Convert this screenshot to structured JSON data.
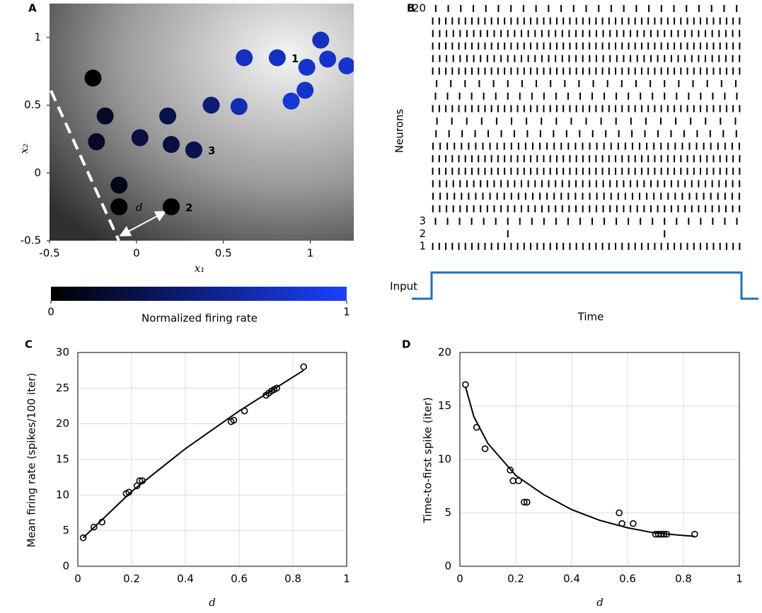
{
  "chart_data": [
    {
      "type": "scatter",
      "panel": "A",
      "xlabel": "x₁",
      "ylabel": "x₂",
      "xlim": [
        -0.5,
        1.25
      ],
      "ylim": [
        -0.5,
        1.25
      ],
      "xticks": [
        -0.5,
        0,
        0.5,
        1
      ],
      "yticks": [
        -0.5,
        0,
        0.5,
        1
      ],
      "grid": false,
      "series": [
        {
          "x": [
            -0.25,
            -0.18,
            -0.23,
            -0.1,
            -0.1,
            0.2,
            0.02,
            0.18,
            0.2,
            0.33,
            0.43,
            0.59,
            0.62,
            0.81,
            1.06,
            1.1,
            1.21,
            0.98,
            0.97,
            0.89
          ],
          "values": [
            0.7,
            0.42,
            0.23,
            -0.09,
            -0.25,
            -0.25,
            0.26,
            0.42,
            0.21,
            0.17,
            0.5,
            0.49,
            0.85,
            0.85,
            0.98,
            0.84,
            0.79,
            0.78,
            0.61,
            0.53
          ],
          "rates": [
            0,
            0.15,
            0.15,
            0.1,
            0,
            0,
            0.25,
            0.3,
            0.25,
            0.3,
            0.45,
            0.7,
            0.75,
            0.75,
            0.75,
            0.8,
            0.8,
            0.8,
            0.8,
            0.85
          ],
          "point_labels": [
            null,
            null,
            null,
            null,
            null,
            "2",
            null,
            null,
            null,
            "3",
            null,
            null,
            null,
            "1",
            null,
            null,
            null,
            null,
            null,
            null
          ]
        }
      ],
      "distance_label": "d",
      "colorbar": {
        "label": "Normalized firing rate",
        "ticks": [
          0,
          1
        ],
        "clim": [
          0,
          1
        ],
        "cmap": [
          "#000000",
          "#1a40ff"
        ]
      }
    },
    {
      "type": "raster",
      "panel": "B",
      "xlabel": "Time",
      "ylabel": "Neurons",
      "input_label": "Input",
      "categories": [
        "1",
        "2",
        "3",
        null,
        null,
        null,
        null,
        null,
        null,
        null,
        null,
        null,
        null,
        null,
        null,
        null,
        null,
        null,
        null,
        "20"
      ],
      "values": [
        48,
        2,
        26,
        46,
        44,
        46,
        48,
        48,
        44,
        24,
        21,
        48,
        26,
        22,
        48,
        46,
        48,
        46,
        48,
        25
      ]
    },
    {
      "type": "scatter",
      "panel": "C",
      "xlabel": "d",
      "ylabel": "Mean firing rate (spikes/100 iter)",
      "xlim": [
        0,
        1
      ],
      "ylim": [
        0,
        30
      ],
      "xticks": [
        0,
        0.2,
        0.4,
        0.6,
        0.8,
        1
      ],
      "yticks": [
        0,
        5,
        10,
        15,
        20,
        25,
        30
      ],
      "grid": true,
      "series": [
        {
          "x": [
            0.02,
            0.06,
            0.09,
            0.18,
            0.19,
            0.22,
            0.23,
            0.24,
            0.57,
            0.58,
            0.62,
            0.7,
            0.71,
            0.72,
            0.73,
            0.74,
            0.84
          ],
          "values": [
            4,
            5.5,
            6.2,
            10.2,
            10.4,
            11.3,
            12,
            12,
            20.3,
            20.5,
            21.8,
            24,
            24.3,
            24.6,
            24.8,
            25,
            28
          ]
        },
        {
          "type": "line",
          "x": [
            0.02,
            0.2,
            0.4,
            0.6,
            0.84
          ],
          "values": [
            4,
            10.5,
            16.5,
            21.8,
            27.5
          ]
        }
      ]
    },
    {
      "type": "scatter",
      "panel": "D",
      "xlabel": "d",
      "ylabel": "Time-to-first spike (iter)",
      "xlim": [
        0,
        1
      ],
      "ylim": [
        0,
        20
      ],
      "xticks": [
        0,
        0.2,
        0.4,
        0.6,
        0.8,
        1
      ],
      "yticks": [
        0,
        5,
        10,
        15,
        20
      ],
      "grid": true,
      "series": [
        {
          "x": [
            0.02,
            0.06,
            0.09,
            0.18,
            0.19,
            0.21,
            0.23,
            0.24,
            0.57,
            0.58,
            0.62,
            0.7,
            0.71,
            0.72,
            0.73,
            0.74,
            0.84
          ],
          "values": [
            17,
            13,
            11,
            9,
            8,
            8,
            6,
            6,
            5,
            4,
            4,
            3,
            3,
            3,
            3,
            3,
            3
          ]
        },
        {
          "type": "line",
          "x": [
            0.02,
            0.05,
            0.1,
            0.2,
            0.3,
            0.4,
            0.5,
            0.6,
            0.7,
            0.84
          ],
          "values": [
            16.8,
            14,
            11.5,
            8.5,
            6.7,
            5.3,
            4.3,
            3.6,
            3.1,
            2.8
          ]
        }
      ]
    }
  ]
}
